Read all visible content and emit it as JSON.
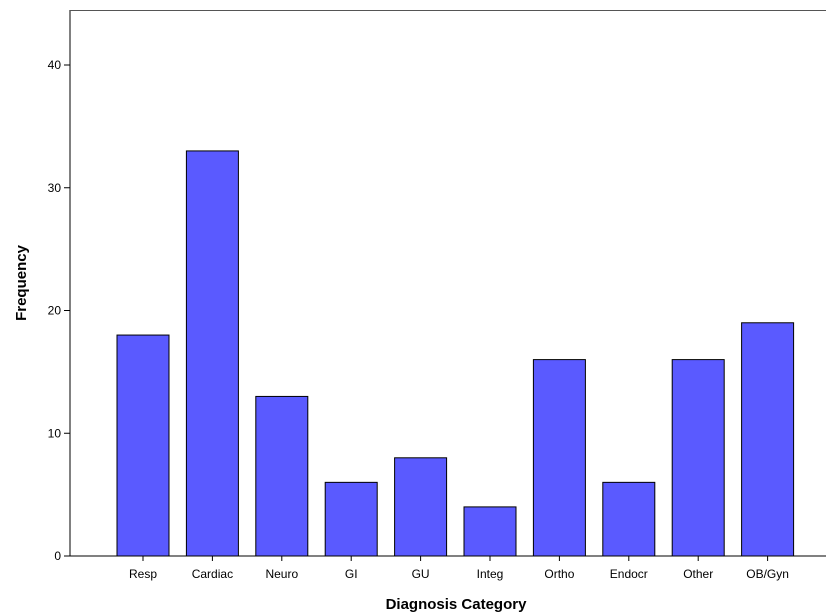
{
  "chart_data": {
    "type": "bar",
    "categories": [
      "Resp",
      "Cardiac",
      "Neuro",
      "GI",
      "GU",
      "Integ",
      "Ortho",
      "Endocr",
      "Other",
      "OB/Gyn"
    ],
    "values": [
      18,
      33,
      13,
      6,
      8,
      4,
      16,
      6,
      16,
      19
    ],
    "title": "",
    "xlabel": "Diagnosis Category",
    "ylabel": "Frequency",
    "ylim": [
      0,
      44
    ],
    "yticks": [
      0,
      10,
      20,
      30,
      40
    ],
    "grid": false,
    "legend": "none",
    "bar_color": "#5a5aff",
    "bar_edge_color": "#000000"
  }
}
